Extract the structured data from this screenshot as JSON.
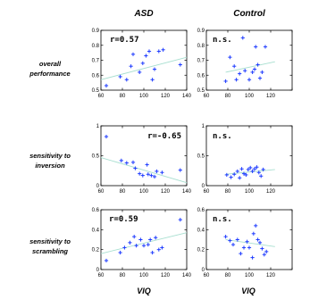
{
  "figure": {
    "columns": [
      "ASD",
      "Control"
    ],
    "rows": [
      [
        "overall",
        "performance"
      ],
      [
        "sensitivity to",
        "inversion"
      ],
      [
        "sensitivity to",
        "scrambling"
      ]
    ],
    "xlabel": "VIQ",
    "colors": {
      "points": "#1f3cff",
      "trend": "#a8dfd0",
      "axes": "#000000"
    }
  },
  "chart_data": [
    {
      "type": "scatter",
      "group": "ASD",
      "measure": "overall performance",
      "xlim": [
        60,
        140
      ],
      "ylim": [
        0.5,
        0.9
      ],
      "xticks": [
        60,
        80,
        100,
        120,
        140
      ],
      "yticks": [
        0.5,
        0.6,
        0.7,
        0.8,
        0.9
      ],
      "xticklabels": [
        "60",
        "80",
        "100",
        "120",
        "140"
      ],
      "yticklabels": [
        "0.5",
        "0.6",
        "0.7",
        "0.8",
        "0.9"
      ],
      "annotation": "r=0.57",
      "trendline": [
        [
          60,
          0.57
        ],
        [
          140,
          0.72
        ]
      ],
      "points": [
        [
          65,
          0.53
        ],
        [
          78,
          0.59
        ],
        [
          84,
          0.57
        ],
        [
          88,
          0.66
        ],
        [
          90,
          0.74
        ],
        [
          96,
          0.62
        ],
        [
          99,
          0.68
        ],
        [
          102,
          0.73
        ],
        [
          105,
          0.76
        ],
        [
          108,
          0.57
        ],
        [
          110,
          0.64
        ],
        [
          114,
          0.76
        ],
        [
          118,
          0.77
        ],
        [
          134,
          0.67
        ]
      ]
    },
    {
      "type": "scatter",
      "group": "Control",
      "measure": "overall performance",
      "xlim": [
        60,
        140
      ],
      "ylim": [
        0.5,
        0.9
      ],
      "xticks": [
        60,
        80,
        100,
        120,
        140
      ],
      "yticks": [
        0.5,
        0.6,
        0.7,
        0.8,
        0.9
      ],
      "xticklabels": [
        "60",
        "80",
        "100",
        "120",
        ""
      ],
      "yticklabels": [
        "0.5",
        "0.6",
        "0.7",
        "0.8",
        "0.9"
      ],
      "annotation": "n.s.",
      "trendline": [
        [
          78,
          0.62
        ],
        [
          124,
          0.69
        ]
      ],
      "points": [
        [
          78,
          0.56
        ],
        [
          82,
          0.72
        ],
        [
          86,
          0.66
        ],
        [
          88,
          0.57
        ],
        [
          91,
          0.61
        ],
        [
          94,
          0.85
        ],
        [
          96,
          0.63
        ],
        [
          100,
          0.57
        ],
        [
          103,
          0.62
        ],
        [
          105,
          0.64
        ],
        [
          106,
          0.79
        ],
        [
          108,
          0.67
        ],
        [
          110,
          0.58
        ],
        [
          112,
          0.62
        ],
        [
          115,
          0.79
        ]
      ]
    },
    {
      "type": "scatter",
      "group": "ASD",
      "measure": "sensitivity to inversion",
      "xlim": [
        60,
        140
      ],
      "ylim": [
        0,
        1
      ],
      "xticks": [
        60,
        80,
        100,
        120,
        140
      ],
      "yticks": [
        0,
        0.5,
        1
      ],
      "xticklabels": [
        "60",
        "80",
        "100",
        "120",
        "140"
      ],
      "yticklabels": [
        "0",
        "0.5",
        "1"
      ],
      "annotation": "r=-0.65",
      "trendline": [
        [
          60,
          0.47
        ],
        [
          140,
          0.05
        ]
      ],
      "points": [
        [
          65,
          0.82
        ],
        [
          79,
          0.42
        ],
        [
          84,
          0.38
        ],
        [
          90,
          0.39
        ],
        [
          92,
          0.29
        ],
        [
          96,
          0.2
        ],
        [
          99,
          0.17
        ],
        [
          103,
          0.35
        ],
        [
          104,
          0.19
        ],
        [
          107,
          0.17
        ],
        [
          110,
          0.15
        ],
        [
          112,
          0.24
        ],
        [
          117,
          0.22
        ],
        [
          134,
          0.26
        ]
      ]
    },
    {
      "type": "scatter",
      "group": "Control",
      "measure": "sensitivity to inversion",
      "xlim": [
        60,
        140
      ],
      "ylim": [
        0,
        1
      ],
      "xticks": [
        60,
        80,
        100,
        120,
        140
      ],
      "yticks": [
        0,
        0.5,
        1
      ],
      "xticklabels": [
        "60",
        "80",
        "100",
        "120",
        ""
      ],
      "yticklabels": [
        "0",
        "0.5",
        "1"
      ],
      "annotation": "n.s.",
      "trendline": [
        [
          78,
          0.19
        ],
        [
          124,
          0.27
        ]
      ],
      "points": [
        [
          79,
          0.18
        ],
        [
          83,
          0.14
        ],
        [
          86,
          0.19
        ],
        [
          89,
          0.24
        ],
        [
          91,
          0.13
        ],
        [
          93,
          0.28
        ],
        [
          95,
          0.2
        ],
        [
          97,
          0.18
        ],
        [
          99,
          0.27
        ],
        [
          101,
          0.3
        ],
        [
          103,
          0.24
        ],
        [
          105,
          0.28
        ],
        [
          107,
          0.31
        ],
        [
          109,
          0.22
        ],
        [
          111,
          0.16
        ],
        [
          113,
          0.27
        ]
      ]
    },
    {
      "type": "scatter",
      "group": "ASD",
      "measure": "sensitivity to scrambling",
      "xlim": [
        60,
        140
      ],
      "ylim": [
        0,
        0.6
      ],
      "xticks": [
        60,
        80,
        100,
        120,
        140
      ],
      "yticks": [
        0,
        0.2,
        0.4,
        0.6
      ],
      "xticklabels": [
        "60",
        "80",
        "100",
        "120",
        "140"
      ],
      "yticklabels": [
        "0",
        "0.2",
        "0.4",
        "0.6"
      ],
      "annotation": "r=0.59",
      "trendline": [
        [
          60,
          0.16
        ],
        [
          140,
          0.37
        ]
      ],
      "points": [
        [
          65,
          0.09
        ],
        [
          78,
          0.17
        ],
        [
          82,
          0.22
        ],
        [
          87,
          0.27
        ],
        [
          91,
          0.33
        ],
        [
          93,
          0.24
        ],
        [
          97,
          0.3
        ],
        [
          100,
          0.24
        ],
        [
          104,
          0.25
        ],
        [
          106,
          0.3
        ],
        [
          108,
          0.17
        ],
        [
          111,
          0.32
        ],
        [
          114,
          0.2
        ],
        [
          117,
          0.22
        ],
        [
          134,
          0.5
        ]
      ]
    },
    {
      "type": "scatter",
      "group": "Control",
      "measure": "sensitivity to scrambling",
      "xlim": [
        60,
        140
      ],
      "ylim": [
        0,
        0.6
      ],
      "xticks": [
        60,
        80,
        100,
        120,
        140
      ],
      "yticks": [
        0,
        0.2,
        0.4,
        0.6
      ],
      "xticklabels": [
        "60",
        "80",
        "100",
        "120",
        ""
      ],
      "yticklabels": [
        "0",
        "0.2",
        "0.4",
        "0.6"
      ],
      "annotation": "n.s.",
      "trendline": [
        [
          78,
          0.3
        ],
        [
          124,
          0.23
        ]
      ],
      "points": [
        [
          78,
          0.33
        ],
        [
          82,
          0.29
        ],
        [
          85,
          0.25
        ],
        [
          89,
          0.3
        ],
        [
          92,
          0.16
        ],
        [
          95,
          0.22
        ],
        [
          98,
          0.28
        ],
        [
          100,
          0.22
        ],
        [
          103,
          0.12
        ],
        [
          104,
          0.36
        ],
        [
          106,
          0.44
        ],
        [
          108,
          0.3
        ],
        [
          110,
          0.27
        ],
        [
          112,
          0.21
        ],
        [
          114,
          0.15
        ],
        [
          116,
          0.18
        ]
      ]
    }
  ]
}
